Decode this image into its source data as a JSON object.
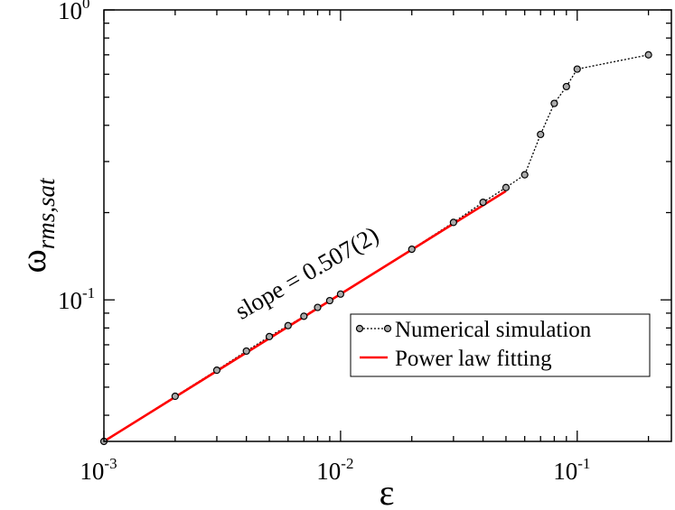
{
  "chart_data": {
    "type": "line",
    "title": "",
    "xlabel": "ε",
    "ylabel": "ω",
    "ylabel_subscript": "rms,sat",
    "xscale": "log",
    "yscale": "log",
    "xlim": [
      0.001,
      0.25
    ],
    "ylim": [
      0.0325,
      1.0
    ],
    "x_ticks": [
      {
        "value": 0.001,
        "base": "10",
        "exp": "-3"
      },
      {
        "value": 0.01,
        "base": "10",
        "exp": "-2"
      },
      {
        "value": 0.1,
        "base": "10",
        "exp": "-1"
      }
    ],
    "y_ticks": [
      {
        "value": 0.1,
        "base": "10",
        "exp": "-1"
      },
      {
        "value": 1.0,
        "base": "10",
        "exp": "0"
      }
    ],
    "series": [
      {
        "name": "Numerical simulation",
        "color": "#000000",
        "style": "dotted-line-with-circles",
        "x": [
          0.001,
          0.002,
          0.003,
          0.004,
          0.005,
          0.006,
          0.007,
          0.008,
          0.009,
          0.01,
          0.02,
          0.03,
          0.04,
          0.05,
          0.06,
          0.07,
          0.08,
          0.09,
          0.1,
          0.2
        ],
        "y": [
          0.0325,
          0.0465,
          0.0572,
          0.0666,
          0.0747,
          0.0815,
          0.0878,
          0.0942,
          0.0994,
          0.1047,
          0.1495,
          0.185,
          0.217,
          0.244,
          0.27,
          0.372,
          0.476,
          0.544,
          0.625,
          0.7
        ]
      },
      {
        "name": "Power law fitting",
        "color": "#ff0000",
        "style": "solid-line",
        "x": [
          0.001,
          0.05
        ],
        "y": [
          0.0325,
          0.2374
        ]
      }
    ],
    "annotations": [
      {
        "text": "slope = 0.507(2)",
        "x": 0.0035,
        "y": 0.095,
        "angle_deg": -30
      }
    ],
    "legend": {
      "position": "bottom-right"
    }
  }
}
